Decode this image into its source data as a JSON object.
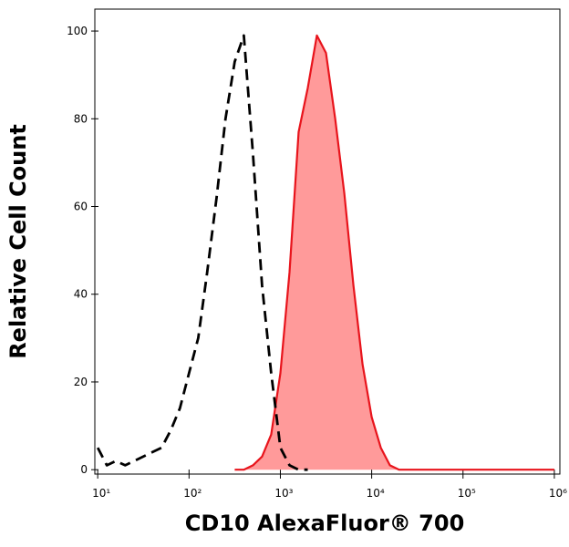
{
  "chart_data": {
    "type": "histogram-overlay",
    "xlabel": "CD10 AlexaFluor® 700",
    "ylabel": "Relative Cell Count",
    "xscale": "log",
    "x": [
      10,
      12.6,
      15.8,
      20,
      25.1,
      31.6,
      39.8,
      50.1,
      63.1,
      79.4,
      100,
      126,
      158,
      200,
      251,
      316,
      398,
      501,
      631,
      794,
      1000,
      1259,
      1585,
      1995,
      2512,
      3162,
      3981,
      5012,
      6310,
      7943,
      10000,
      12589,
      15849,
      19953,
      25119,
      31623,
      100000,
      316228,
      1000000
    ],
    "series": [
      {
        "color": "#000000",
        "line_style": "dashed",
        "values": [
          5,
          1,
          2,
          1,
          2,
          3,
          4,
          5,
          9,
          14,
          22,
          30,
          45,
          62,
          80,
          93,
          99,
          72,
          42,
          22,
          5,
          1,
          0,
          0,
          null,
          null,
          null,
          null,
          null,
          null,
          null,
          null,
          null,
          null,
          null,
          null,
          null,
          null,
          null
        ]
      },
      {
        "color": "#e8141c",
        "fill": "#ff9a9a",
        "line_style": "solid",
        "values": [
          null,
          null,
          null,
          null,
          null,
          null,
          null,
          null,
          null,
          null,
          null,
          null,
          null,
          null,
          null,
          0,
          0,
          1,
          3,
          8,
          22,
          45,
          77,
          87,
          99,
          95,
          80,
          63,
          42,
          24,
          12,
          5,
          1,
          0,
          0,
          0,
          0,
          0,
          0
        ]
      }
    ],
    "xlim": [
      9.3,
      1150000
    ],
    "ylim": [
      -1,
      105
    ],
    "xticks": [
      {
        "value": 10,
        "label": "10¹"
      },
      {
        "value": 100,
        "label": "10²"
      },
      {
        "value": 1000,
        "label": "10³"
      },
      {
        "value": 10000,
        "label": "10⁴"
      },
      {
        "value": 100000,
        "label": "10⁵"
      },
      {
        "value": 1000000,
        "label": "10⁶"
      }
    ],
    "yticks": [
      0,
      20,
      40,
      60,
      80,
      100
    ]
  }
}
